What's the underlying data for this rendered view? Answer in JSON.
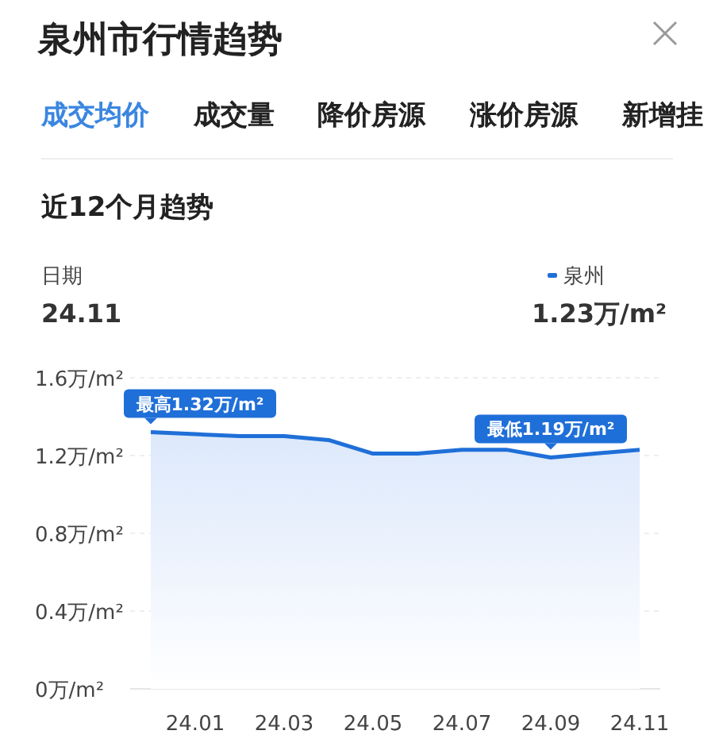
{
  "chart_data": {
    "type": "area",
    "title": "泉州市行情趋势",
    "subtitle": "近12个月趋势",
    "categories": [
      null,
      "24.01",
      null,
      "24.03",
      null,
      "24.05",
      null,
      "24.07",
      null,
      "24.09",
      null,
      "24.11"
    ],
    "series": [
      {
        "name": "泉州",
        "color": "#1f6fd8",
        "values": [
          1.32,
          1.31,
          1.3,
          1.3,
          1.28,
          1.21,
          1.21,
          1.23,
          1.23,
          1.19,
          1.21,
          1.23
        ]
      }
    ],
    "ylim": [
      0,
      1.6
    ],
    "yticks": [
      {
        "value": 0,
        "label": "0万/m²"
      },
      {
        "value": 0.4,
        "label": "0.4万/m²"
      },
      {
        "value": 0.8,
        "label": "0.8万/m²"
      },
      {
        "value": 1.2,
        "label": "1.2万/m²"
      },
      {
        "value": 1.6,
        "label": "1.6万/m²"
      }
    ],
    "grid": "y",
    "legend": "top right",
    "annotations": [
      "成交均价",
      "成交量",
      "降价房源",
      "涨价房源",
      "新增挂",
      "日期",
      "24.11",
      "1.23万/m²",
      {
        "text": "最高1.32万/m²",
        "y": 1.32
      },
      {
        "text": "最低1.19万/m²",
        "y": 1.19
      }
    ]
  }
}
